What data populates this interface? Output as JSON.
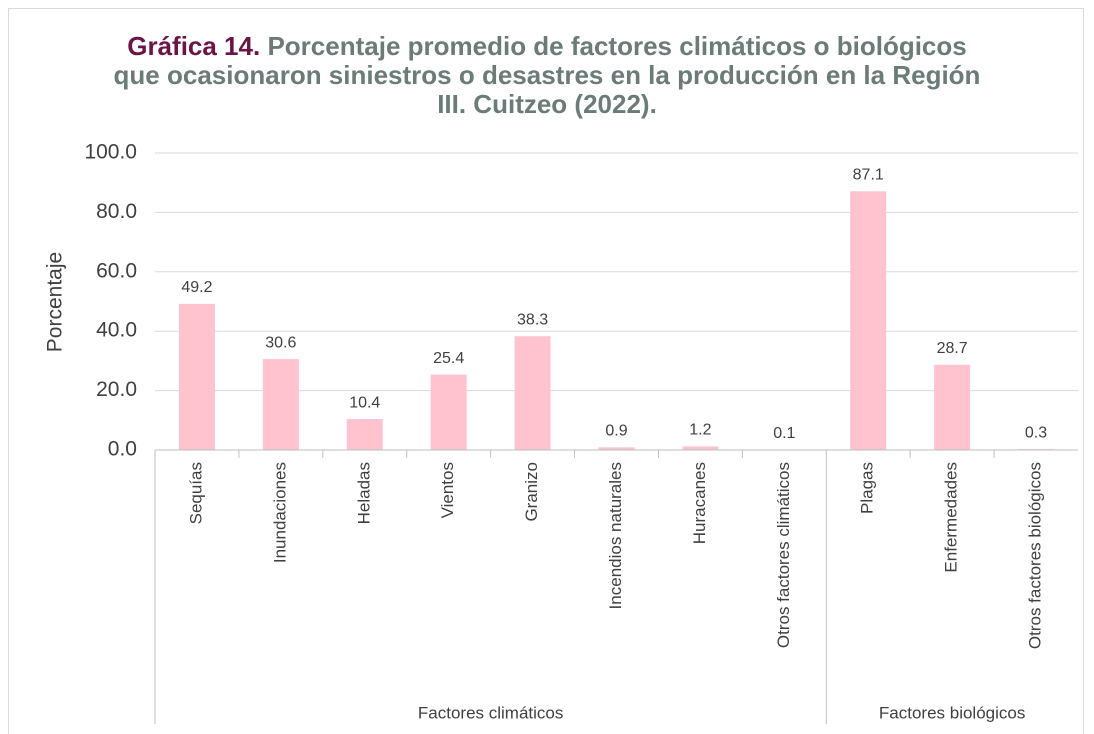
{
  "chart_data": {
    "type": "bar",
    "title_label": "Gráfica 14.",
    "title": "Porcentaje promedio de factores climáticos o biológicos que ocasionaron siniestros o desastres en la producción en la Región III. Cuitzeo (2022).",
    "ylabel": "Porcentaje",
    "color": "#ffc2cf",
    "groups": [
      {
        "name": "Factores climáticos",
        "categories": [
          "Sequías",
          "Inundaciones",
          "Heladas",
          "Vientos",
          "Granizo",
          "Incendios naturales",
          "Huracanes",
          "Otros factores climáticos"
        ],
        "values": [
          49.2,
          30.6,
          10.4,
          25.4,
          38.3,
          0.9,
          1.2,
          0.1
        ]
      },
      {
        "name": "Factores biológicos",
        "categories": [
          "Plagas",
          "Enfermedades",
          "Otros factores biológicos"
        ],
        "values": [
          87.1,
          28.7,
          0.3
        ]
      }
    ],
    "ylim": [
      0,
      100
    ],
    "yticks": [
      {
        "value": 0,
        "label": "0.0"
      },
      {
        "value": 20,
        "label": "20.0"
      },
      {
        "value": 40,
        "label": "40.0"
      },
      {
        "value": 60,
        "label": "60.0"
      },
      {
        "value": 80,
        "label": "80.0"
      },
      {
        "value": 100,
        "label": "100.0"
      }
    ],
    "grid": true
  }
}
